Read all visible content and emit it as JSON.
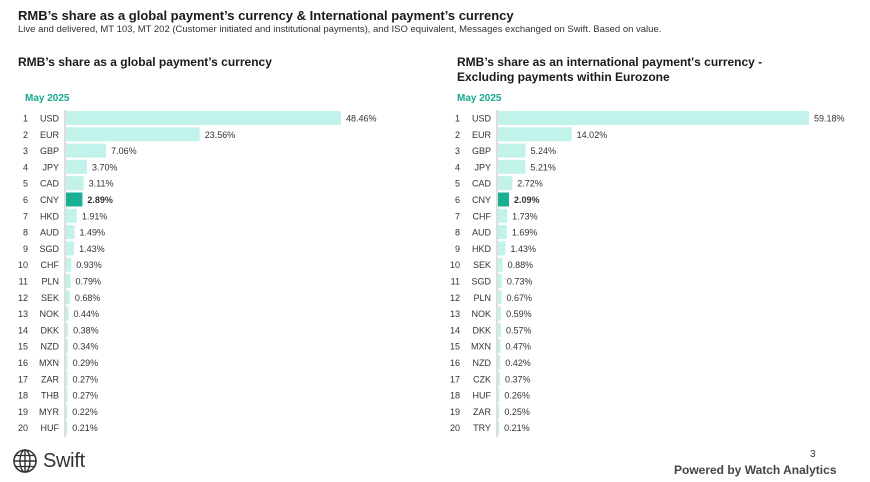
{
  "header": {
    "title": "RMB’s share as a global payment’s currency & International payment’s currency",
    "subtitle": "Live and delivered, MT 103, MT 202 (Customer initiated and institutional payments), and ISO equivalent, Messages exchanged on Swift. Based on value."
  },
  "colors": {
    "bar": "#c2f3ea",
    "highlight": "#1ab094",
    "period": "#1aa58e",
    "axis": "#bdbdbd"
  },
  "chart_data": [
    {
      "type": "bar",
      "orientation": "horizontal",
      "title": "RMB’s share as a global payment’s currency",
      "period_label": "May 2025",
      "highlight": "CNY",
      "ranks": [
        "1",
        "2",
        "3",
        "4",
        "5",
        "6",
        "7",
        "8",
        "9",
        "10",
        "11",
        "12",
        "13",
        "14",
        "15",
        "16",
        "17",
        "18",
        "19",
        "20"
      ],
      "categories": [
        "USD",
        "EUR",
        "GBP",
        "JPY",
        "CAD",
        "CNY",
        "HKD",
        "AUD",
        "SGD",
        "CHF",
        "PLN",
        "SEK",
        "NOK",
        "DKK",
        "NZD",
        "MXN",
        "ZAR",
        "THB",
        "MYR",
        "HUF"
      ],
      "values": [
        48.46,
        23.56,
        7.06,
        3.7,
        3.11,
        2.89,
        1.91,
        1.49,
        1.43,
        0.93,
        0.79,
        0.68,
        0.44,
        0.38,
        0.34,
        0.29,
        0.27,
        0.27,
        0.22,
        0.21
      ],
      "labels": [
        "48.46%",
        "23.56%",
        "7.06%",
        "3.70%",
        "3.11%",
        "2.89%",
        "1.91%",
        "1.49%",
        "1.43%",
        "0.93%",
        "0.79%",
        "0.68%",
        "0.44%",
        "0.38%",
        "0.34%",
        "0.29%",
        "0.27%",
        "0.27%",
        "0.22%",
        "0.21%"
      ]
    },
    {
      "type": "bar",
      "orientation": "horizontal",
      "title": "RMB’s share as an international payment's currency - Excluding payments within Eurozone",
      "period_label": "May 2025",
      "highlight": "CNY",
      "ranks": [
        "1",
        "2",
        "3",
        "4",
        "5",
        "6",
        "7",
        "8",
        "9",
        "10",
        "11",
        "12",
        "13",
        "14",
        "15",
        "16",
        "17",
        "18",
        "19",
        "20"
      ],
      "categories": [
        "USD",
        "EUR",
        "GBP",
        "JPY",
        "CAD",
        "CNY",
        "CHF",
        "AUD",
        "HKD",
        "SEK",
        "SGD",
        "PLN",
        "NOK",
        "DKK",
        "MXN",
        "NZD",
        "CZK",
        "HUF",
        "ZAR",
        "TRY"
      ],
      "values": [
        59.18,
        14.02,
        5.24,
        5.21,
        2.72,
        2.09,
        1.73,
        1.69,
        1.43,
        0.88,
        0.73,
        0.67,
        0.59,
        0.57,
        0.47,
        0.42,
        0.37,
        0.26,
        0.25,
        0.21
      ],
      "labels": [
        "59.18%",
        "14.02%",
        "5.24%",
        "5.21%",
        "2.72%",
        "2.09%",
        "1.73%",
        "1.69%",
        "1.43%",
        "0.88%",
        "0.73%",
        "0.67%",
        "0.59%",
        "0.57%",
        "0.47%",
        "0.42%",
        "0.37%",
        "0.26%",
        "0.25%",
        "0.21%"
      ]
    }
  ],
  "footer": {
    "logo_text": "Swift",
    "page_number": "3",
    "powered_by": "Powered by Watch Analytics"
  }
}
